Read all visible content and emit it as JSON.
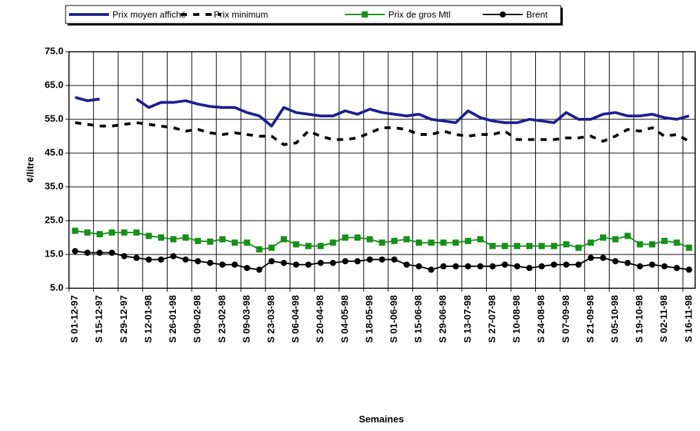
{
  "chart_data": {
    "type": "line",
    "ylabel": "¢/litre",
    "xlabel": "Semaines",
    "categories": [
      "S 01-12-97",
      null,
      "S 15-12-97",
      null,
      "S 29-12-97",
      null,
      "S 12-01-98",
      null,
      "S 26-01-98",
      null,
      "S 09-02-98",
      null,
      "S 23-02-98",
      null,
      "S 09-03-98",
      null,
      "S 23-03-98",
      null,
      "S 06-04-98",
      null,
      "S 20-04-98",
      null,
      "S 04-05-98",
      null,
      "S 18-05-98",
      null,
      "S 01-06-98",
      null,
      "S 15-06-98",
      null,
      "S 29-06-98",
      null,
      "S 13-07-98",
      null,
      "S 27-07-98",
      null,
      "S 10-08-98",
      null,
      "S 24-08-98",
      null,
      "S 07-09-98",
      null,
      "S 21-09-98",
      null,
      "S 05-10-98",
      null,
      "S 19-10-98",
      null,
      "S 02-11-98",
      null,
      "S 16-11-98"
    ],
    "series": [
      {
        "name": "Prix moyen affiché",
        "color": "#1f1f8f",
        "line_style": "solid",
        "marker": "none",
        "values": [
          61.5,
          60.5,
          61,
          null,
          null,
          61,
          58.5,
          60,
          60,
          60.5,
          59.5,
          58.8,
          58.5,
          58.5,
          57,
          56,
          53,
          58.5,
          57,
          56.5,
          56,
          56,
          57.5,
          56.5,
          58,
          57,
          56.5,
          56,
          56.5,
          55,
          54.5,
          54,
          57.5,
          55.5,
          54.5,
          54,
          54,
          55,
          54.5,
          54,
          57,
          55,
          55,
          56.5,
          57,
          56,
          56,
          56.5,
          55.5,
          55,
          56
        ]
      },
      {
        "name": "Prix minimum",
        "color": "#000000",
        "line_style": "dashed",
        "marker": "none",
        "values": [
          54,
          53.5,
          53,
          53,
          53.5,
          54,
          53.5,
          53,
          52.5,
          51.5,
          52,
          51,
          50.5,
          51,
          50.5,
          50,
          50,
          47.5,
          48,
          51.5,
          50,
          49,
          49,
          49.5,
          51,
          52.5,
          52.5,
          52,
          50.5,
          50.5,
          51.5,
          50.5,
          50,
          50.5,
          50.5,
          51.5,
          49,
          49,
          49,
          49,
          49.5,
          49.5,
          50,
          48.5,
          50,
          52,
          51.5,
          52.5,
          50,
          50.5,
          48.5
        ]
      },
      {
        "name": "Prix de gros Mtl",
        "color": "#16901a",
        "line_style": "solid",
        "marker": "square",
        "values": [
          22,
          21.5,
          21,
          21.5,
          21.5,
          21.5,
          20.5,
          20,
          19.5,
          20,
          19,
          18.8,
          19.5,
          18.5,
          18.5,
          16.5,
          17,
          19.5,
          18,
          17.5,
          17.5,
          18.5,
          20,
          20,
          19.5,
          18.5,
          19,
          19.5,
          18.5,
          18.5,
          18.5,
          18.5,
          19,
          19.5,
          17.5,
          17.5,
          17.5,
          17.5,
          17.5,
          17.5,
          18,
          17,
          18.5,
          20,
          19.5,
          20.5,
          18,
          18,
          19,
          18.5,
          17
        ]
      },
      {
        "name": "Brent",
        "color": "#000000",
        "line_style": "solid",
        "marker": "circle",
        "values": [
          16,
          15.5,
          15.5,
          15.5,
          14.5,
          14,
          13.5,
          13.5,
          14.5,
          13.5,
          13,
          12.5,
          12,
          12,
          11,
          10.5,
          13,
          12.5,
          12,
          12,
          12.5,
          12.5,
          13,
          13,
          13.5,
          13.5,
          13.5,
          12,
          11.5,
          10.5,
          11.5,
          11.5,
          11.5,
          11.5,
          11.5,
          12,
          11.5,
          11,
          11.5,
          12,
          12,
          12,
          14,
          14,
          13,
          12.5,
          11.5,
          12,
          11.5,
          11,
          10.5
        ]
      }
    ],
    "ylim": [
      5,
      75
    ],
    "yticks": [
      {
        "value": 5,
        "label": "5.0"
      },
      {
        "value": 15,
        "label": "15.0"
      },
      {
        "value": 25,
        "label": "25.0"
      },
      {
        "value": 35,
        "label": "35.0"
      },
      {
        "value": 45,
        "label": "45.0"
      },
      {
        "value": 55,
        "label": "55.0"
      },
      {
        "value": 65,
        "label": "65.0"
      },
      {
        "value": 75,
        "label": "75.0"
      }
    ],
    "grid": true,
    "legend": "top"
  }
}
